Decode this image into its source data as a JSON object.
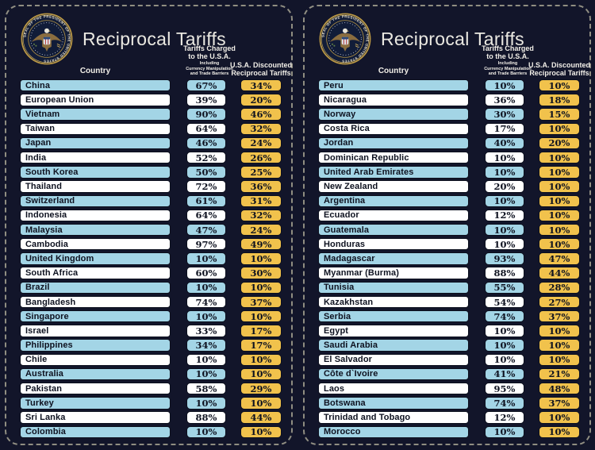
{
  "seal": {
    "ring_text": "SEAL OF THE PRESIDENT OF THE UNITED STATES",
    "colors": {
      "ring_gold": "#bd9a45",
      "field_navy": "#111c38",
      "eagle_tan": "#8a6d3f"
    }
  },
  "colors": {
    "background": "#12152a",
    "row_blue": "#a3d5e6",
    "row_white": "#ffffff",
    "value_gold": "#f1c24c",
    "cell_border": "#0c101e",
    "panel_dashed_border": "#908e82",
    "title_text": "#eae8e1"
  },
  "chart_data": [
    {
      "type": "table",
      "title": "Reciprocal Tariffs",
      "columns": {
        "country": "Country",
        "charged_lines": [
          "Tariffs Charged",
          "to the U.S.A."
        ],
        "charged_note_lines": [
          "Including",
          "Currency Manipulation",
          "and Trade Barriers"
        ],
        "discounted_lines": [
          "U.S.A. Discounted",
          "Reciprocal Tariffs"
        ]
      },
      "rows": [
        {
          "country": "China",
          "charged": "67%",
          "discounted": "34%"
        },
        {
          "country": "European Union",
          "charged": "39%",
          "discounted": "20%"
        },
        {
          "country": "Vietnam",
          "charged": "90%",
          "discounted": "46%"
        },
        {
          "country": "Taiwan",
          "charged": "64%",
          "discounted": "32%"
        },
        {
          "country": "Japan",
          "charged": "46%",
          "discounted": "24%"
        },
        {
          "country": "India",
          "charged": "52%",
          "discounted": "26%"
        },
        {
          "country": "South Korea",
          "charged": "50%",
          "discounted": "25%"
        },
        {
          "country": "Thailand",
          "charged": "72%",
          "discounted": "36%"
        },
        {
          "country": "Switzerland",
          "charged": "61%",
          "discounted": "31%"
        },
        {
          "country": "Indonesia",
          "charged": "64%",
          "discounted": "32%"
        },
        {
          "country": "Malaysia",
          "charged": "47%",
          "discounted": "24%"
        },
        {
          "country": "Cambodia",
          "charged": "97%",
          "discounted": "49%"
        },
        {
          "country": "United Kingdom",
          "charged": "10%",
          "discounted": "10%"
        },
        {
          "country": "South Africa",
          "charged": "60%",
          "discounted": "30%"
        },
        {
          "country": "Brazil",
          "charged": "10%",
          "discounted": "10%"
        },
        {
          "country": "Bangladesh",
          "charged": "74%",
          "discounted": "37%"
        },
        {
          "country": "Singapore",
          "charged": "10%",
          "discounted": "10%"
        },
        {
          "country": "Israel",
          "charged": "33%",
          "discounted": "17%"
        },
        {
          "country": "Philippines",
          "charged": "34%",
          "discounted": "17%"
        },
        {
          "country": "Chile",
          "charged": "10%",
          "discounted": "10%"
        },
        {
          "country": "Australia",
          "charged": "10%",
          "discounted": "10%"
        },
        {
          "country": "Pakistan",
          "charged": "58%",
          "discounted": "29%"
        },
        {
          "country": "Turkey",
          "charged": "10%",
          "discounted": "10%"
        },
        {
          "country": "Sri Lanka",
          "charged": "88%",
          "discounted": "44%"
        },
        {
          "country": "Colombia",
          "charged": "10%",
          "discounted": "10%"
        }
      ]
    },
    {
      "type": "table",
      "title": "Reciprocal Tariffs",
      "columns": {
        "country": "Country",
        "charged_lines": [
          "Tariffs Charged",
          "to the U.S.A."
        ],
        "charged_note_lines": [
          "Including",
          "Currency Manipulation",
          "and Trade Barriers"
        ],
        "discounted_lines": [
          "U.S.A. Discounted",
          "Reciprocal Tariffs"
        ]
      },
      "rows": [
        {
          "country": "Peru",
          "charged": "10%",
          "discounted": "10%"
        },
        {
          "country": "Nicaragua",
          "charged": "36%",
          "discounted": "18%"
        },
        {
          "country": "Norway",
          "charged": "30%",
          "discounted": "15%"
        },
        {
          "country": "Costa Rica",
          "charged": "17%",
          "discounted": "10%"
        },
        {
          "country": "Jordan",
          "charged": "40%",
          "discounted": "20%"
        },
        {
          "country": "Dominican Republic",
          "charged": "10%",
          "discounted": "10%"
        },
        {
          "country": "United Arab Emirates",
          "charged": "10%",
          "discounted": "10%"
        },
        {
          "country": "New Zealand",
          "charged": "20%",
          "discounted": "10%"
        },
        {
          "country": "Argentina",
          "charged": "10%",
          "discounted": "10%"
        },
        {
          "country": "Ecuador",
          "charged": "12%",
          "discounted": "10%"
        },
        {
          "country": "Guatemala",
          "charged": "10%",
          "discounted": "10%"
        },
        {
          "country": "Honduras",
          "charged": "10%",
          "discounted": "10%"
        },
        {
          "country": "Madagascar",
          "charged": "93%",
          "discounted": "47%"
        },
        {
          "country": "Myanmar (Burma)",
          "charged": "88%",
          "discounted": "44%"
        },
        {
          "country": "Tunisia",
          "charged": "55%",
          "discounted": "28%"
        },
        {
          "country": "Kazakhstan",
          "charged": "54%",
          "discounted": "27%"
        },
        {
          "country": "Serbia",
          "charged": "74%",
          "discounted": "37%"
        },
        {
          "country": "Egypt",
          "charged": "10%",
          "discounted": "10%"
        },
        {
          "country": "Saudi Arabia",
          "charged": "10%",
          "discounted": "10%"
        },
        {
          "country": "El Salvador",
          "charged": "10%",
          "discounted": "10%"
        },
        {
          "country": "Côte d`Ivoire",
          "charged": "41%",
          "discounted": "21%"
        },
        {
          "country": "Laos",
          "charged": "95%",
          "discounted": "48%"
        },
        {
          "country": "Botswana",
          "charged": "74%",
          "discounted": "37%"
        },
        {
          "country": "Trinidad and Tobago",
          "charged": "12%",
          "discounted": "10%"
        },
        {
          "country": "Morocco",
          "charged": "10%",
          "discounted": "10%"
        }
      ]
    }
  ]
}
